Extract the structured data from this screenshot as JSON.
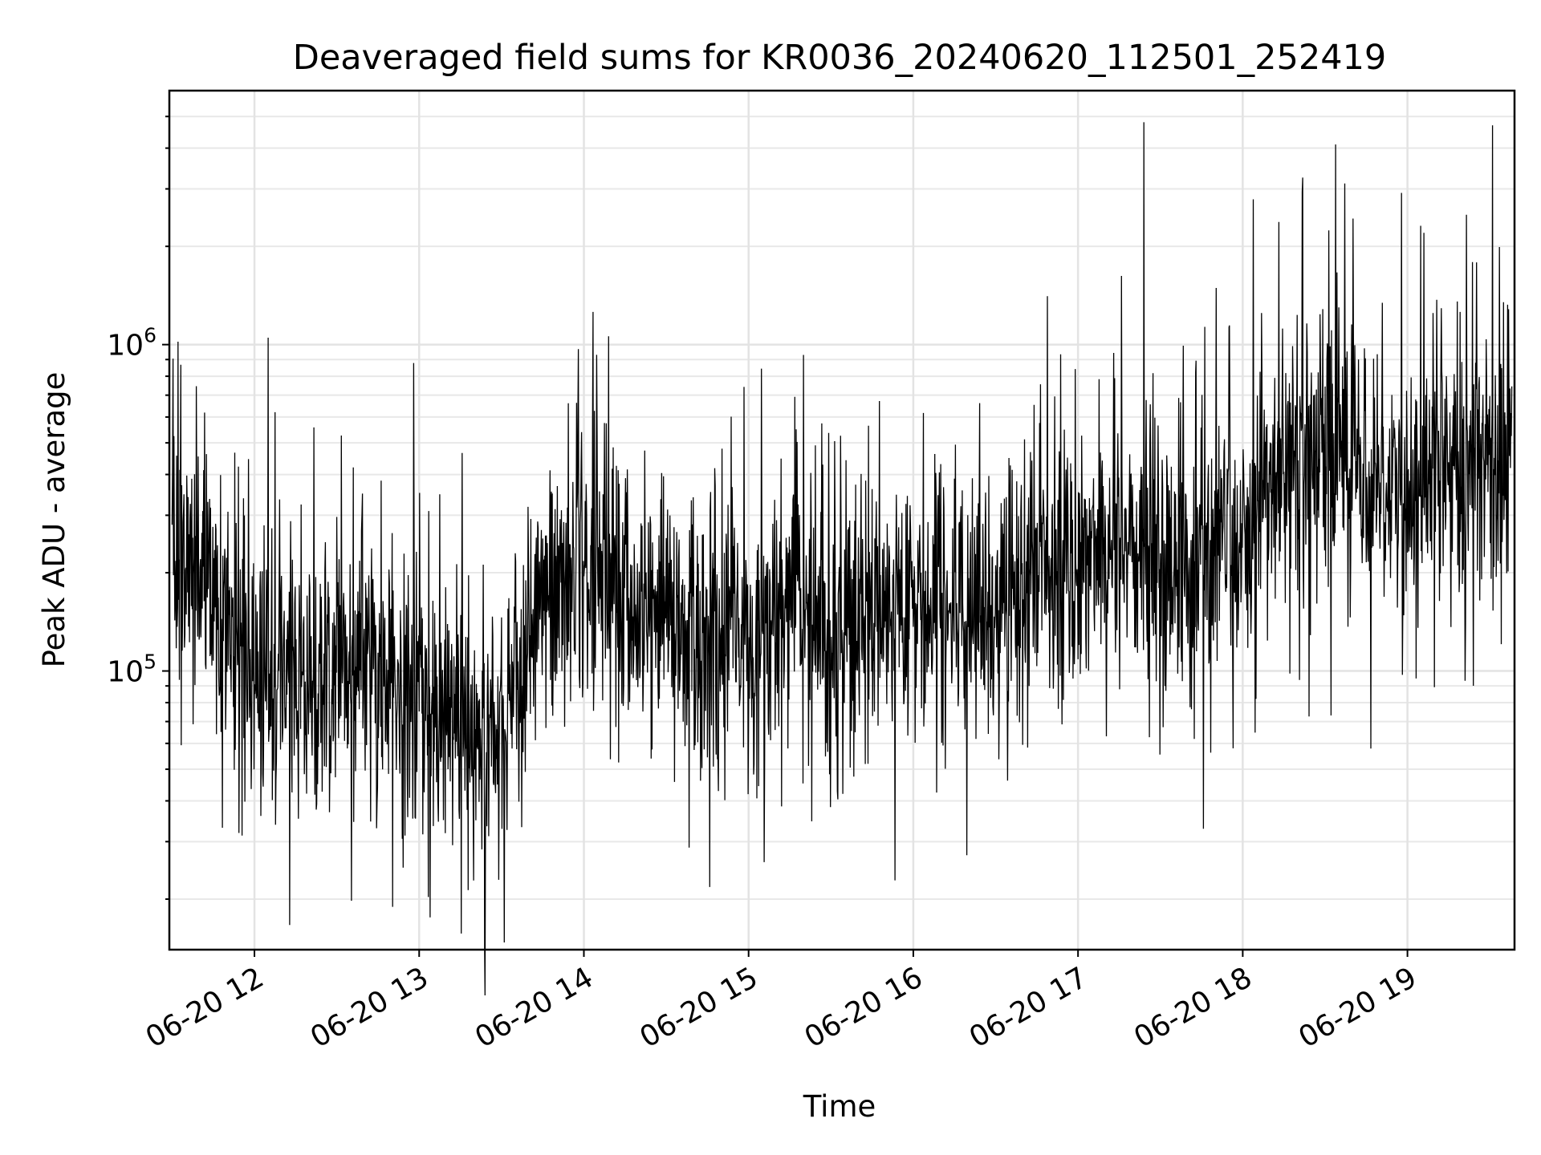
{
  "chart_data": {
    "type": "line",
    "title": "Deaveraged field sums for KR0036_20240620_112501_252419",
    "xlabel": "Time",
    "ylabel": "Peak ADU - average",
    "yscale": "log",
    "xlim": [
      "2024-06-20T11:29:00",
      "2024-06-20T19:39:00"
    ],
    "ylim": [
      14000,
      6000000
    ],
    "grid": true,
    "x_ticks": [
      {
        "value": "2024-06-20T12:00:00",
        "label": "06-20 12"
      },
      {
        "value": "2024-06-20T13:00:00",
        "label": "06-20 13"
      },
      {
        "value": "2024-06-20T14:00:00",
        "label": "06-20 14"
      },
      {
        "value": "2024-06-20T15:00:00",
        "label": "06-20 15"
      },
      {
        "value": "2024-06-20T16:00:00",
        "label": "06-20 16"
      },
      {
        "value": "2024-06-20T17:00:00",
        "label": "06-20 17"
      },
      {
        "value": "2024-06-20T18:00:00",
        "label": "06-20 18"
      },
      {
        "value": "2024-06-20T19:00:00",
        "label": "06-20 19"
      }
    ],
    "y_ticks": [
      {
        "value": 100000,
        "base": "10",
        "exp": "5"
      },
      {
        "value": 1000000,
        "base": "10",
        "exp": "6"
      }
    ],
    "series": [
      {
        "color": "#000000",
        "envelope_note_free": true,
        "x": [
          "2024-06-20T11:30:00",
          "2024-06-20T11:45:00",
          "2024-06-20T12:00:00",
          "2024-06-20T12:15:00",
          "2024-06-20T12:30:00",
          "2024-06-20T12:45:00",
          "2024-06-20T13:00:00",
          "2024-06-20T13:15:00",
          "2024-06-20T13:30:00",
          "2024-06-20T13:45:00",
          "2024-06-20T14:00:00",
          "2024-06-20T14:15:00",
          "2024-06-20T14:30:00",
          "2024-06-20T14:45:00",
          "2024-06-20T15:00:00",
          "2024-06-20T15:15:00",
          "2024-06-20T15:30:00",
          "2024-06-20T15:45:00",
          "2024-06-20T16:00:00",
          "2024-06-20T16:15:00",
          "2024-06-20T16:30:00",
          "2024-06-20T16:45:00",
          "2024-06-20T17:00:00",
          "2024-06-20T17:15:00",
          "2024-06-20T17:30:00",
          "2024-06-20T17:45:00",
          "2024-06-20T18:00:00",
          "2024-06-20T18:15:00",
          "2024-06-20T18:30:00",
          "2024-06-20T18:45:00",
          "2024-06-20T19:00:00",
          "2024-06-20T19:15:00",
          "2024-06-20T19:30:00",
          "2024-06-20T19:38:00"
        ],
        "y": [
          250000,
          170000,
          100000,
          90000,
          110000,
          100000,
          75000,
          65000,
          60000,
          150000,
          210000,
          180000,
          130000,
          120000,
          110000,
          160000,
          130000,
          140000,
          140000,
          150000,
          160000,
          210000,
          230000,
          250000,
          200000,
          190000,
          260000,
          430000,
          520000,
          430000,
          380000,
          410000,
          430000,
          470000
        ],
        "spikes": [
          {
            "x": "2024-06-20T12:05:00",
            "y": 1050000
          },
          {
            "x": "2024-06-20T14:09:00",
            "y": 1060000
          },
          {
            "x": "2024-06-20T15:20:00",
            "y": 930000
          },
          {
            "x": "2024-06-20T17:24:00",
            "y": 4800000
          },
          {
            "x": "2024-06-20T18:35:00",
            "y": 1300000
          },
          {
            "x": "2024-06-20T19:06:00",
            "y": 2200000
          },
          {
            "x": "2024-06-20T19:31:00",
            "y": 4700000
          }
        ]
      }
    ]
  }
}
